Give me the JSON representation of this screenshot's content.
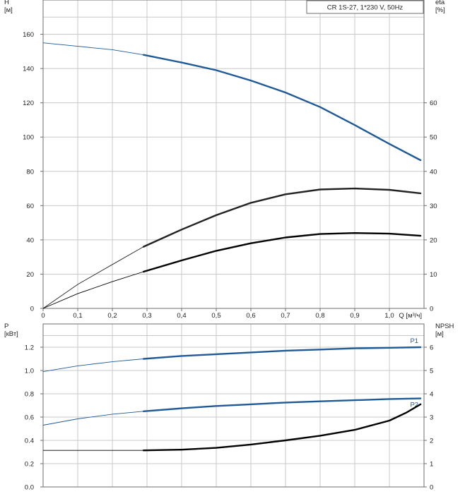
{
  "chart_data": [
    {
      "type": "line",
      "title": "CR 1S-27, 1*230 V, 50Hz",
      "ylabel_left": "H",
      "ylabel_left_unit": "[м]",
      "ylabel_right": "eta",
      "ylabel_right_unit": "[%]",
      "xlabel": "Q [м³/ч]",
      "xlim": [
        0,
        1.1
      ],
      "ylim_left": [
        0,
        180
      ],
      "ylim_right": [
        0,
        90
      ],
      "x_ticks": [
        "0",
        "0,1",
        "0,2",
        "0,3",
        "0,4",
        "0,5",
        "0,6",
        "0,7",
        "0,8",
        "0,9",
        "1,0"
      ],
      "y_ticks_left": [
        "0",
        "20",
        "40",
        "60",
        "80",
        "100",
        "120",
        "140",
        "160"
      ],
      "y_ticks_right": [
        "0",
        "10",
        "20",
        "30",
        "40",
        "50",
        "60"
      ],
      "grid": true,
      "operating_range_start": 0.29,
      "series": [
        {
          "axis": "left",
          "color": "#1f5a96",
          "x": [
            0,
            0.1,
            0.2,
            0.29,
            0.4,
            0.5,
            0.6,
            0.7,
            0.8,
            0.9,
            1.0,
            1.09
          ],
          "y": [
            155,
            153,
            151,
            148,
            143.5,
            139,
            133,
            126,
            117.5,
            107,
            96,
            86.5
          ]
        },
        {
          "axis": "right",
          "color": "#222222",
          "x": [
            0,
            0.1,
            0.2,
            0.29,
            0.4,
            0.5,
            0.6,
            0.7,
            0.8,
            0.9,
            1.0,
            1.09
          ],
          "y": [
            0,
            7,
            12.8,
            18,
            23,
            27.2,
            30.8,
            33.3,
            34.7,
            35,
            34.6,
            33.6
          ]
        },
        {
          "axis": "right",
          "color": "#000000",
          "x": [
            0,
            0.1,
            0.2,
            0.29,
            0.4,
            0.5,
            0.6,
            0.7,
            0.8,
            0.9,
            1.0,
            1.09
          ],
          "y": [
            0,
            4.3,
            7.8,
            10.7,
            14,
            16.8,
            19,
            20.7,
            21.7,
            22,
            21.8,
            21.2
          ]
        }
      ]
    },
    {
      "type": "line",
      "ylabel_left": "P",
      "ylabel_left_unit": "[кВт]",
      "ylabel_right": "NPSH",
      "ylabel_right_unit": "[м]",
      "xlim": [
        0,
        1.1
      ],
      "ylim_left": [
        0,
        1.4
      ],
      "ylim_right": [
        0,
        7
      ],
      "y_ticks_left": [
        "0.0",
        "0.2",
        "0.4",
        "0.6",
        "0.8",
        "1.0",
        "1.2"
      ],
      "y_ticks_right": [
        "0",
        "1",
        "2",
        "3",
        "4",
        "5",
        "6"
      ],
      "grid": true,
      "operating_range_start": 0.29,
      "series": [
        {
          "name": "P1",
          "axis": "left",
          "color": "#1f5a96",
          "x": [
            0,
            0.1,
            0.2,
            0.29,
            0.4,
            0.5,
            0.6,
            0.7,
            0.8,
            0.9,
            1.0,
            1.09
          ],
          "y": [
            0.99,
            1.04,
            1.075,
            1.1,
            1.125,
            1.14,
            1.155,
            1.17,
            1.18,
            1.19,
            1.195,
            1.2
          ]
        },
        {
          "name": "P2",
          "axis": "left",
          "color": "#1f5a96",
          "x": [
            0,
            0.1,
            0.2,
            0.29,
            0.4,
            0.5,
            0.6,
            0.7,
            0.8,
            0.9,
            1.0,
            1.09
          ],
          "y": [
            0.53,
            0.585,
            0.625,
            0.65,
            0.675,
            0.695,
            0.71,
            0.725,
            0.735,
            0.745,
            0.755,
            0.76
          ]
        },
        {
          "axis": "right",
          "color": "#000000",
          "x": [
            0,
            0.1,
            0.2,
            0.29,
            0.4,
            0.5,
            0.6,
            0.7,
            0.8,
            0.9,
            1.0,
            1.05,
            1.09
          ],
          "y": [
            1.57,
            1.57,
            1.57,
            1.57,
            1.6,
            1.68,
            1.82,
            2.0,
            2.2,
            2.45,
            2.85,
            3.2,
            3.55
          ]
        }
      ]
    }
  ]
}
